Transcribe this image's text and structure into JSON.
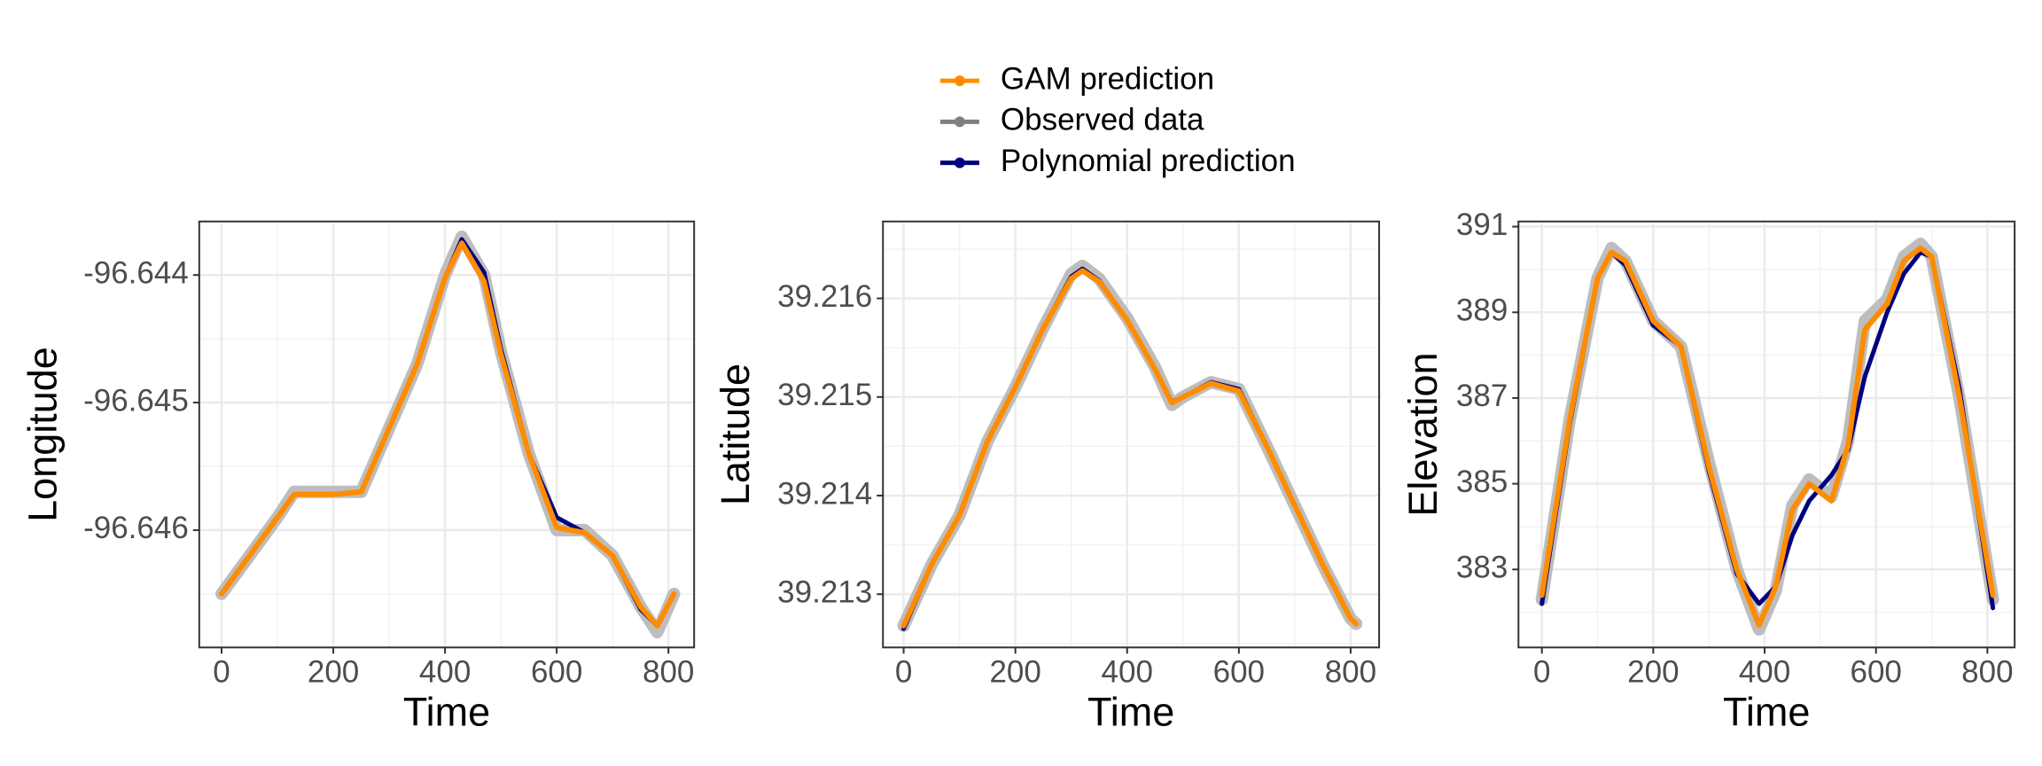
{
  "chart_data": [
    {
      "type": "line",
      "x_label": "Time",
      "y_label": "Longitude",
      "xlim": [
        -40,
        846
      ],
      "xticks": [
        0,
        200,
        400,
        600,
        800
      ],
      "ylim": [
        -96.64692,
        -96.64358
      ],
      "yticks": [
        -96.646,
        -96.645,
        -96.644
      ],
      "grid": true,
      "x": [
        0,
        50,
        100,
        130,
        200,
        250,
        300,
        350,
        400,
        430,
        470,
        500,
        550,
        600,
        650,
        700,
        750,
        780,
        810
      ],
      "series": [
        {
          "name": "Observed data",
          "color": "#bdbdbd",
          "values": [
            -96.6465,
            -96.6462,
            -96.6459,
            -96.6457,
            -96.6457,
            -96.6457,
            -96.6452,
            -96.6447,
            -96.644,
            -96.6437,
            -96.644,
            -96.6446,
            -96.6454,
            -96.646,
            -96.646,
            -96.6462,
            -96.6466,
            -96.6468,
            -96.6465
          ]
        },
        {
          "name": "Polynomial prediction",
          "color": "#000080",
          "values": [
            -96.6465,
            -96.6462,
            -96.6459,
            -96.64572,
            -96.64572,
            -96.6457,
            -96.6452,
            -96.6447,
            -96.64402,
            -96.64372,
            -96.64398,
            -96.64458,
            -96.6454,
            -96.6459,
            -96.64602,
            -96.6462,
            -96.64662,
            -96.64675,
            -96.6465
          ]
        },
        {
          "name": "GAM prediction",
          "color": "#ff8c00",
          "values": [
            -96.6465,
            -96.6462,
            -96.6459,
            -96.64572,
            -96.64572,
            -96.6457,
            -96.6452,
            -96.6447,
            -96.64402,
            -96.64375,
            -96.64405,
            -96.64462,
            -96.6454,
            -96.64598,
            -96.64602,
            -96.6462,
            -96.6466,
            -96.64675,
            -96.6465
          ]
        }
      ]
    },
    {
      "type": "line",
      "x_label": "Time",
      "y_label": "Latitude",
      "xlim": [
        -37,
        851
      ],
      "xticks": [
        0,
        200,
        400,
        600,
        800
      ],
      "ylim": [
        39.21246,
        39.21678
      ],
      "yticks": [
        39.213,
        39.214,
        39.215,
        39.216
      ],
      "grid": true,
      "x": [
        0,
        50,
        100,
        150,
        200,
        250,
        300,
        320,
        350,
        400,
        450,
        480,
        500,
        550,
        600,
        650,
        700,
        750,
        800,
        810
      ],
      "series": [
        {
          "color": "#bdbdbd",
          "values": [
            39.21268,
            39.2133,
            39.2138,
            39.21455,
            39.2151,
            39.2157,
            39.21625,
            39.21633,
            39.2162,
            39.2158,
            39.2153,
            39.21492,
            39.215,
            39.21515,
            39.21508,
            39.2145,
            39.2139,
            39.2133,
            39.21275,
            39.2127
          ]
        },
        {
          "color": "#000080",
          "values": [
            39.21265,
            39.2133,
            39.2138,
            39.21455,
            39.2151,
            39.2157,
            39.21622,
            39.2163,
            39.21618,
            39.21578,
            39.21528,
            39.21495,
            39.215,
            39.21515,
            39.21508,
            39.2145,
            39.2139,
            39.2133,
            39.21275,
            39.2127
          ]
        },
        {
          "color": "#ff8c00",
          "values": [
            39.21268,
            39.2133,
            39.2138,
            39.21455,
            39.2151,
            39.2157,
            39.2162,
            39.21628,
            39.21617,
            39.21578,
            39.21528,
            39.21494,
            39.215,
            39.21514,
            39.21506,
            39.2145,
            39.2139,
            39.2133,
            39.21275,
            39.2127
          ]
        }
      ]
    },
    {
      "type": "line",
      "x_label": "Time",
      "y_label": "Elevation",
      "xlim": [
        -42,
        849
      ],
      "xticks": [
        0,
        200,
        400,
        600,
        800
      ],
      "ylim": [
        381.18,
        391.12
      ],
      "yticks": [
        383,
        385,
        387,
        389,
        391
      ],
      "grid": true,
      "x": [
        0,
        50,
        100,
        125,
        150,
        200,
        250,
        300,
        350,
        390,
        420,
        450,
        480,
        520,
        550,
        580,
        620,
        650,
        680,
        700,
        750,
        810
      ],
      "series": [
        {
          "color": "#bdbdbd",
          "values": [
            382.3,
            386.5,
            389.8,
            390.5,
            390.2,
            388.8,
            388.2,
            385.5,
            383.0,
            381.6,
            382.5,
            384.5,
            385.1,
            384.7,
            386.0,
            388.8,
            389.3,
            390.3,
            390.6,
            390.3,
            387.0,
            382.3
          ]
        },
        {
          "color": "#000080",
          "values": [
            382.2,
            386.4,
            389.8,
            390.4,
            390.1,
            388.7,
            388.2,
            385.3,
            382.9,
            382.2,
            382.6,
            383.8,
            384.6,
            385.2,
            385.8,
            387.5,
            389.0,
            389.9,
            390.4,
            390.3,
            387.2,
            382.1
          ]
        },
        {
          "color": "#ff8c00",
          "values": [
            382.4,
            386.5,
            389.8,
            390.4,
            390.2,
            388.8,
            388.2,
            385.4,
            383.0,
            381.7,
            382.6,
            384.4,
            385.0,
            384.6,
            385.9,
            388.6,
            389.2,
            390.2,
            390.5,
            390.3,
            387.0,
            382.4
          ]
        }
      ]
    }
  ]
}
